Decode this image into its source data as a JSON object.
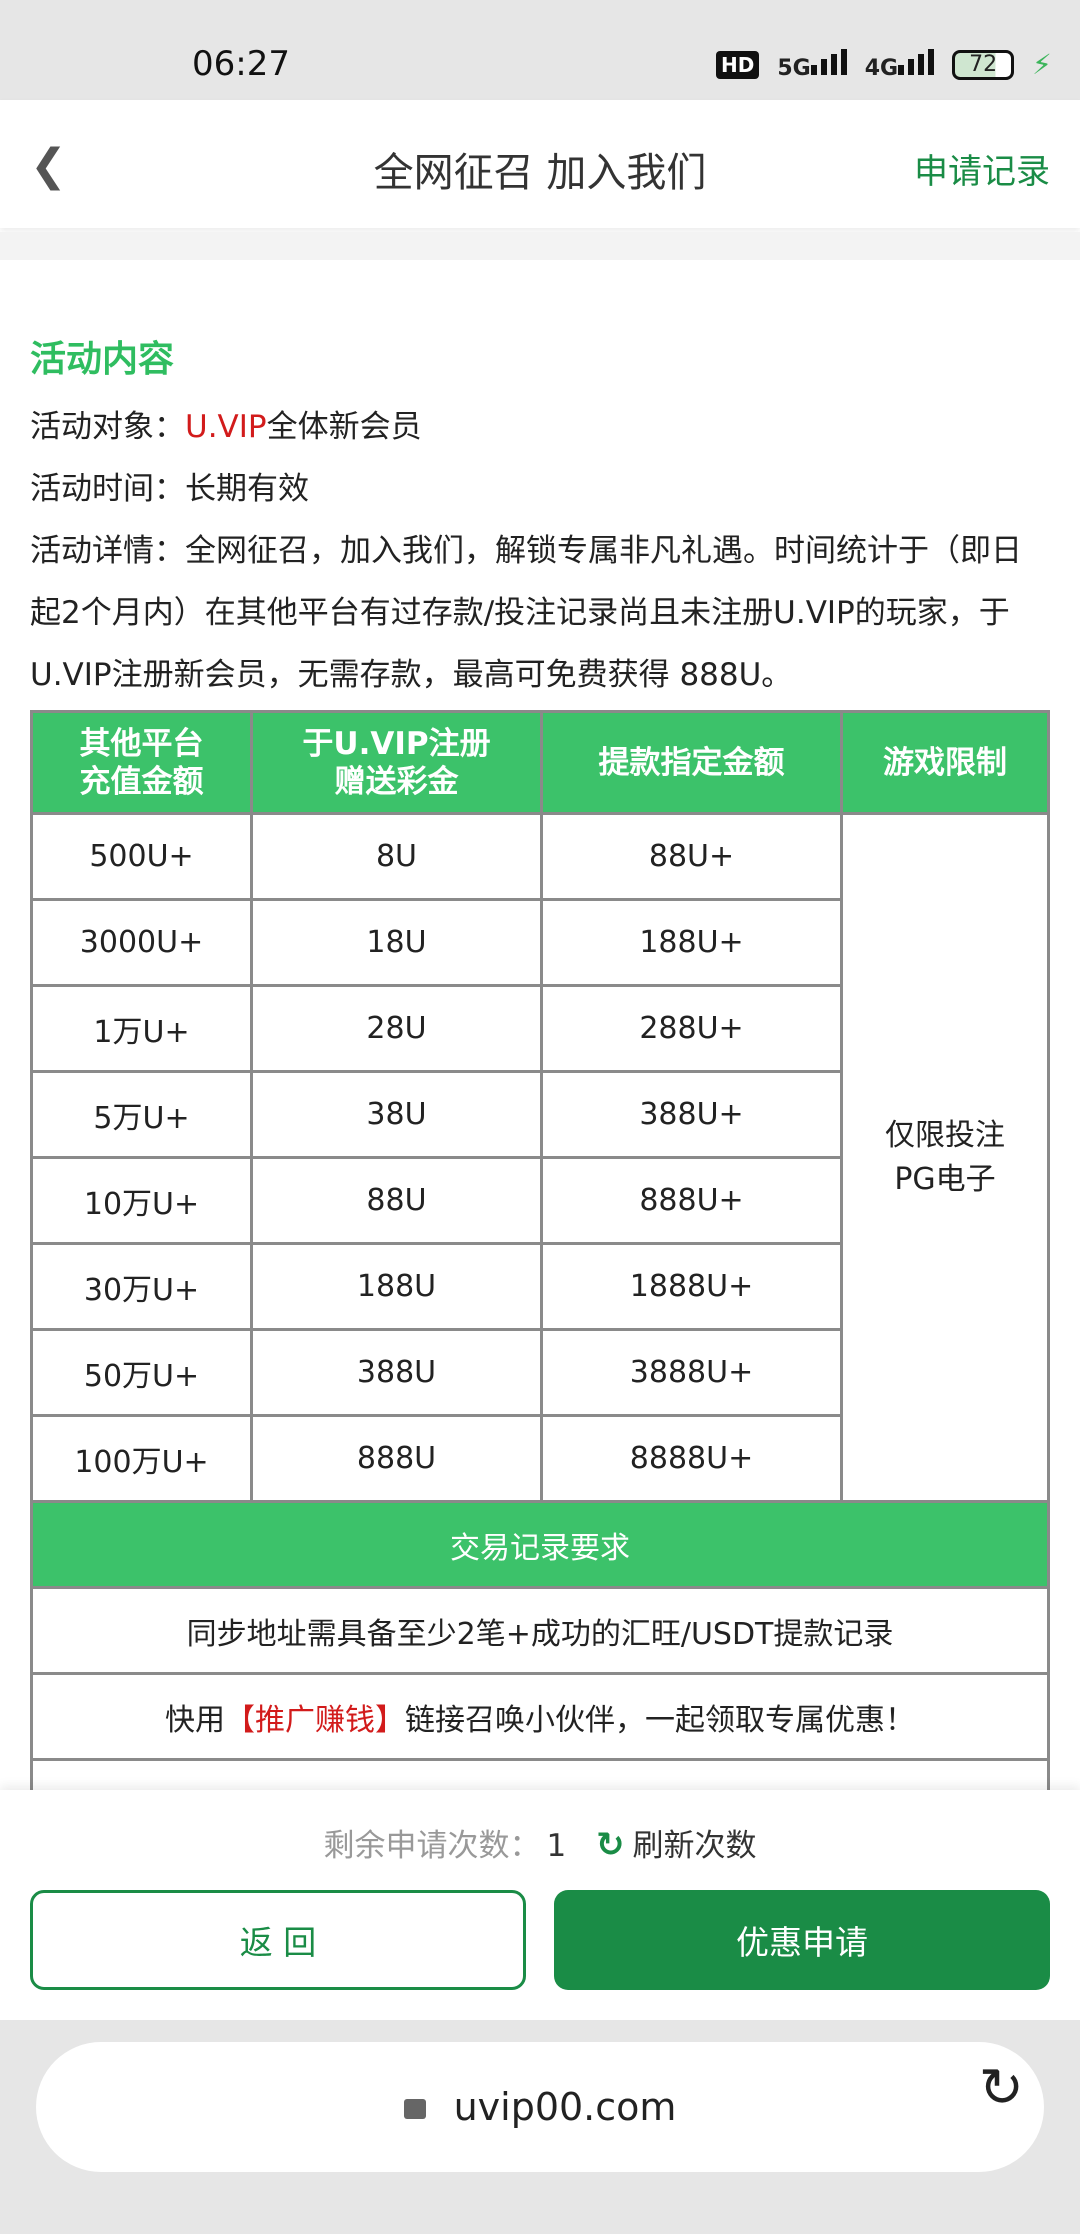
{
  "status": {
    "time": "06:27",
    "hd": "HD",
    "net1": "5G",
    "net2": "4G",
    "battery": "72"
  },
  "header": {
    "title": "全网征召 加入我们",
    "record": "申请记录"
  },
  "content": {
    "heading": "活动内容",
    "target_label": "活动对象：",
    "target_brand": "U.VIP",
    "target_rest": "全体新会员",
    "time_label": "活动时间：",
    "time_value": "长期有效",
    "detail": "活动详情：全网征召，加入我们，解锁专属非凡礼遇。时间统计于（即日起2个月内）在其他平台有过存款/投注记录尚且未注册U.VIP的玩家，于U.VIP注册新会员，无需存款，最高可免费获得 888U。"
  },
  "table": {
    "headers": [
      "其他平台\n充值金额",
      "于U.VIP注册\n赠送彩金",
      "提款指定金额",
      "游戏限制"
    ],
    "rows": [
      [
        "500U+",
        "8U",
        "88U+"
      ],
      [
        "3000U+",
        "18U",
        "188U+"
      ],
      [
        "1万U+",
        "28U",
        "288U+"
      ],
      [
        "5万U+",
        "38U",
        "388U+"
      ],
      [
        "10万U+",
        "88U",
        "888U+"
      ],
      [
        "30万U+",
        "188U",
        "1888U+"
      ],
      [
        "50万U+",
        "388U",
        "3888U+"
      ],
      [
        "100万U+",
        "888U",
        "8888U+"
      ]
    ],
    "game_limit": "仅限投注\nPG电子",
    "section": "交易记录要求",
    "req": "同步地址需具备至少2笔+成功的汇旺/USDT提款记录",
    "promo_pre": "快用",
    "promo_red": "【推广赚钱】",
    "promo_post": "链接召唤小伙伴，一起领取专属优惠！"
  },
  "bottom": {
    "remain_label": "剩余申请次数：",
    "remain_count": "1",
    "refresh": "刷新次数",
    "back": "返 回",
    "apply": "优惠申请"
  },
  "browser": {
    "url": "uvip00.com"
  },
  "colors": {
    "green": "#3cc26a",
    "dark_green": "#1a8c46",
    "red": "#d21b1b"
  }
}
